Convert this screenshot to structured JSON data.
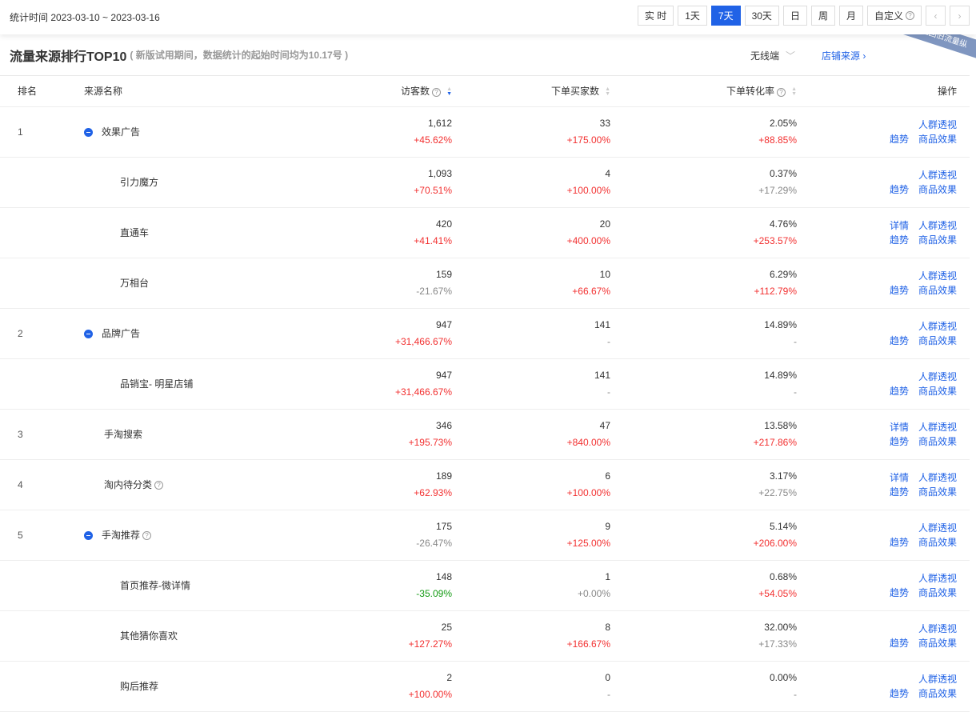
{
  "topbar": {
    "range": "统计时间 2023-03-10 ~ 2023-03-16",
    "buttons": [
      "实 时",
      "1天",
      "7天",
      "30天",
      "日",
      "周",
      "月",
      "自定义"
    ],
    "active": "7天",
    "prev": "‹",
    "next": "›"
  },
  "title": {
    "main": "流量来源排行TOP10",
    "note": "( 新版试用期间，数据统计的起始时间均为10.17号 )",
    "device": "无线端",
    "shop_source": "店铺来源",
    "back_old": "返回旧流量纵"
  },
  "colors": {
    "accent": "#2062e6",
    "up": "#f23030",
    "down_green": "#139a13",
    "neutral": "#888888"
  },
  "headers": {
    "rank": "排名",
    "name": "来源名称",
    "visitors": "访客数",
    "buyers": "下单买家数",
    "rate": "下单转化率",
    "ops": "操作"
  },
  "rows": [
    {
      "rank": "1",
      "name": "效果广告",
      "level": "group",
      "vis": "1,612",
      "visc": {
        "v": "+45.62%",
        "c": "red"
      },
      "buy": "33",
      "buyc": {
        "v": "+175.00%",
        "c": "red"
      },
      "rate": "2.05%",
      "ratec": {
        "v": "+88.85%",
        "c": "red"
      },
      "ops1": [
        "人群透视"
      ],
      "ops2": [
        "趋势",
        "商品效果"
      ]
    },
    {
      "rank": "",
      "name": "引力魔方",
      "level": "child",
      "vis": "1,093",
      "visc": {
        "v": "+70.51%",
        "c": "red"
      },
      "buy": "4",
      "buyc": {
        "v": "+100.00%",
        "c": "red"
      },
      "rate": "0.37%",
      "ratec": {
        "v": "+17.29%",
        "c": "gray"
      },
      "ops1": [
        "人群透视"
      ],
      "ops2": [
        "趋势",
        "商品效果"
      ]
    },
    {
      "rank": "",
      "name": "直通车",
      "level": "child",
      "vis": "420",
      "visc": {
        "v": "+41.41%",
        "c": "red"
      },
      "buy": "20",
      "buyc": {
        "v": "+400.00%",
        "c": "red"
      },
      "rate": "4.76%",
      "ratec": {
        "v": "+253.57%",
        "c": "red"
      },
      "ops1": [
        "详情",
        "人群透视"
      ],
      "ops2": [
        "趋势",
        "商品效果"
      ]
    },
    {
      "rank": "",
      "name": "万相台",
      "level": "child",
      "vis": "159",
      "visc": {
        "v": "-21.67%",
        "c": "gray"
      },
      "buy": "10",
      "buyc": {
        "v": "+66.67%",
        "c": "red"
      },
      "rate": "6.29%",
      "ratec": {
        "v": "+112.79%",
        "c": "red"
      },
      "ops1": [
        "人群透视"
      ],
      "ops2": [
        "趋势",
        "商品效果"
      ]
    },
    {
      "rank": "2",
      "name": "品牌广告",
      "level": "group",
      "vis": "947",
      "visc": {
        "v": "+31,466.67%",
        "c": "red"
      },
      "buy": "141",
      "buyc": {
        "v": "-",
        "c": "gray"
      },
      "rate": "14.89%",
      "ratec": {
        "v": "-",
        "c": "gray"
      },
      "ops1": [
        "人群透视"
      ],
      "ops2": [
        "趋势",
        "商品效果"
      ]
    },
    {
      "rank": "",
      "name": "品销宝- 明星店铺",
      "level": "child",
      "vis": "947",
      "visc": {
        "v": "+31,466.67%",
        "c": "red"
      },
      "buy": "141",
      "buyc": {
        "v": "-",
        "c": "gray"
      },
      "rate": "14.89%",
      "ratec": {
        "v": "-",
        "c": "gray"
      },
      "ops1": [
        "人群透视"
      ],
      "ops2": [
        "趋势",
        "商品效果"
      ]
    },
    {
      "rank": "3",
      "name": "手淘搜索",
      "level": "single",
      "vis": "346",
      "visc": {
        "v": "+195.73%",
        "c": "red"
      },
      "buy": "47",
      "buyc": {
        "v": "+840.00%",
        "c": "red"
      },
      "rate": "13.58%",
      "ratec": {
        "v": "+217.86%",
        "c": "red"
      },
      "ops1": [
        "详情",
        "人群透视"
      ],
      "ops2": [
        "趋势",
        "商品效果"
      ]
    },
    {
      "rank": "4",
      "name": "淘内待分类",
      "level": "single",
      "help": true,
      "vis": "189",
      "visc": {
        "v": "+62.93%",
        "c": "red"
      },
      "buy": "6",
      "buyc": {
        "v": "+100.00%",
        "c": "red"
      },
      "rate": "3.17%",
      "ratec": {
        "v": "+22.75%",
        "c": "gray"
      },
      "ops1": [
        "详情",
        "人群透视"
      ],
      "ops2": [
        "趋势",
        "商品效果"
      ]
    },
    {
      "rank": "5",
      "name": "手淘推荐",
      "level": "group",
      "help": true,
      "vis": "175",
      "visc": {
        "v": "-26.47%",
        "c": "gray"
      },
      "buy": "9",
      "buyc": {
        "v": "+125.00%",
        "c": "red"
      },
      "rate": "5.14%",
      "ratec": {
        "v": "+206.00%",
        "c": "red"
      },
      "ops1": [
        "人群透视"
      ],
      "ops2": [
        "趋势",
        "商品效果"
      ]
    },
    {
      "rank": "",
      "name": "首页推荐-微详情",
      "level": "child",
      "vis": "148",
      "visc": {
        "v": "-35.09%",
        "c": "green"
      },
      "buy": "1",
      "buyc": {
        "v": "+0.00%",
        "c": "gray"
      },
      "rate": "0.68%",
      "ratec": {
        "v": "+54.05%",
        "c": "red"
      },
      "ops1": [
        "人群透视"
      ],
      "ops2": [
        "趋势",
        "商品效果"
      ]
    },
    {
      "rank": "",
      "name": "其他猜你喜欢",
      "level": "child",
      "vis": "25",
      "visc": {
        "v": "+127.27%",
        "c": "red"
      },
      "buy": "8",
      "buyc": {
        "v": "+166.67%",
        "c": "red"
      },
      "rate": "32.00%",
      "ratec": {
        "v": "+17.33%",
        "c": "gray"
      },
      "ops1": [
        "人群透视"
      ],
      "ops2": [
        "趋势",
        "商品效果"
      ]
    },
    {
      "rank": "",
      "name": "购后推荐",
      "level": "child",
      "vis": "2",
      "visc": {
        "v": "+100.00%",
        "c": "red"
      },
      "buy": "0",
      "buyc": {
        "v": "-",
        "c": "gray"
      },
      "rate": "0.00%",
      "ratec": {
        "v": "-",
        "c": "gray"
      },
      "ops1": [
        "人群透视"
      ],
      "ops2": [
        "趋势",
        "商品效果"
      ]
    }
  ]
}
